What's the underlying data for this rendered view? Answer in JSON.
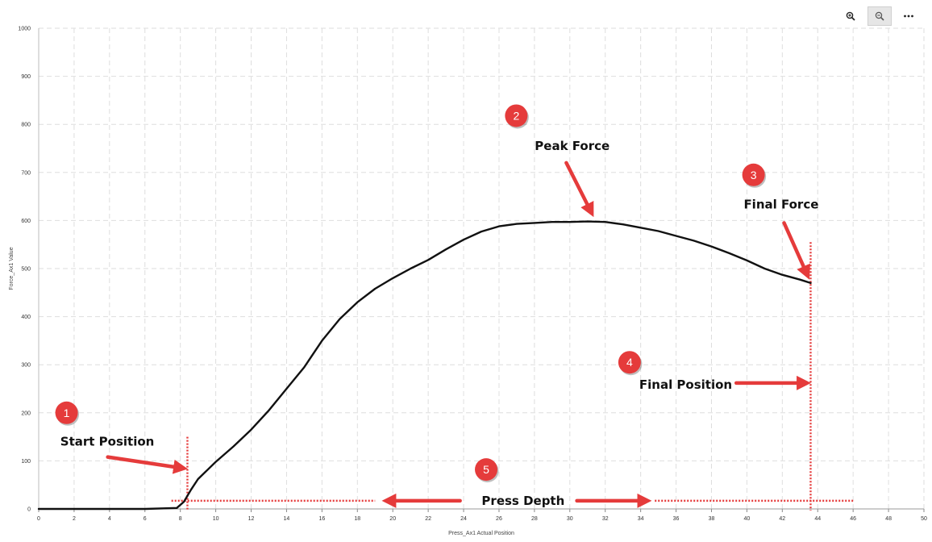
{
  "toolbar": {
    "zoom_in_icon": "zoom-in-icon",
    "zoom_out_icon": "zoom-out-icon",
    "more_icon": "more-icon"
  },
  "chart_data": {
    "type": "line",
    "xlabel": "Press_Ax1 Actual Position",
    "ylabel": "Force_Ax1 Value",
    "xlim": [
      0,
      50
    ],
    "ylim": [
      0,
      1000
    ],
    "x_ticks": [
      0,
      2,
      4,
      6,
      8,
      10,
      12,
      14,
      16,
      18,
      20,
      22,
      24,
      26,
      28,
      30,
      32,
      34,
      36,
      38,
      40,
      42,
      44,
      46,
      48,
      50
    ],
    "y_ticks": [
      0,
      100,
      200,
      300,
      400,
      500,
      600,
      700,
      800,
      900,
      1000
    ],
    "grid": true,
    "series": [
      {
        "x": [
          0,
          2,
          4,
          6,
          7.8,
          8.2,
          8.6,
          9,
          9.5,
          10,
          11,
          12,
          13,
          14,
          15,
          16,
          17,
          18,
          19,
          20,
          21,
          22,
          23,
          24,
          25,
          26,
          27,
          28,
          29,
          30,
          31,
          32,
          33,
          34,
          35,
          36,
          37,
          38,
          39,
          40,
          41,
          42,
          43,
          43.6
        ],
        "y": [
          0,
          0,
          0,
          0,
          2,
          15,
          40,
          62,
          80,
          98,
          130,
          165,
          205,
          250,
          295,
          350,
          395,
          430,
          458,
          480,
          500,
          518,
          540,
          560,
          577,
          588,
          593,
          595,
          597,
          597,
          598,
          597,
          592,
          585,
          578,
          568,
          558,
          546,
          532,
          517,
          500,
          487,
          477,
          470
        ]
      }
    ],
    "markers": [
      {
        "type": "vertical",
        "x": 8.4,
        "y_top": 150,
        "color": "#e53b3b"
      },
      {
        "type": "vertical",
        "x": 43.6,
        "y_top": 555,
        "color": "#e53b3b"
      },
      {
        "type": "horizontal",
        "y": 17,
        "x_from": 7.5,
        "x_to": 19,
        "color": "#e53b3b"
      },
      {
        "type": "horizontal",
        "y": 17,
        "x_from": 34.8,
        "x_to": 46,
        "color": "#e53b3b"
      }
    ],
    "annotations": [
      {
        "number": "1",
        "label": "Start Position",
        "badge_x": 0.8,
        "badge_y": 200,
        "label_x": 0.4,
        "label_y": 140,
        "arrow_from": [
          3.9,
          108
        ],
        "arrow_to": [
          8.1,
          85
        ]
      },
      {
        "number": "2",
        "label": "Peak Force",
        "badge_x": 26.2,
        "badge_y": 818,
        "label_x": 27.2,
        "label_y": 755,
        "arrow_from": [
          29.8,
          720
        ],
        "arrow_to": [
          31.2,
          618
        ]
      },
      {
        "number": "3",
        "label": "Final Force",
        "badge_x": 39.6,
        "badge_y": 695,
        "label_x": 39,
        "label_y": 633,
        "arrow_from": [
          42.1,
          595
        ],
        "arrow_to": [
          43.4,
          488
        ]
      },
      {
        "number": "4",
        "label": "Final Position",
        "badge_x": 32.6,
        "badge_y": 305,
        "label_x": 33.1,
        "label_y": 258,
        "arrow_from": [
          39.4,
          262
        ],
        "arrow_to": [
          43.3,
          262
        ]
      },
      {
        "number": "5",
        "label": "Press Depth",
        "badge_x": 24.5,
        "badge_y": 82,
        "label_x": 24.2,
        "label_y": 17,
        "arrow_from": [
          23.8,
          17
        ],
        "arrow_to": [
          19.7,
          17
        ],
        "arrow2_from": [
          30.4,
          17
        ],
        "arrow2_to": [
          34.3,
          17
        ]
      }
    ],
    "colors": {
      "line": "#111111",
      "annotation": "#e53b3b",
      "grid": "#dedede"
    }
  }
}
